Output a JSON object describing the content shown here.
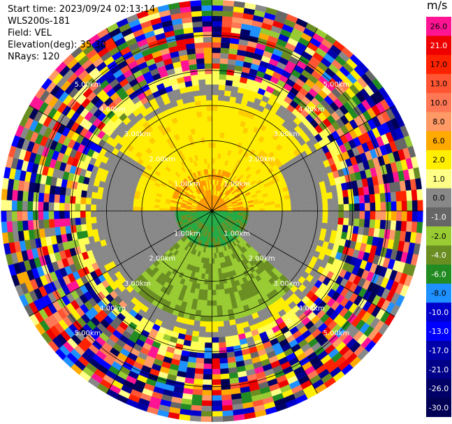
{
  "info": {
    "start_time": "Start time: 2023/09/24 02:13:14",
    "instrument": "WLS200s-181",
    "field": "Field: VEL",
    "elevation": "Elevation(deg): 35.30",
    "nrays": "NRays: 120"
  },
  "chart_data": {
    "type": "heatmap",
    "projection": "polar-ppi",
    "field": "VEL",
    "units": "m/s",
    "nrays": 120,
    "max_range_km": 6.0,
    "range_rings_km": [
      1.0,
      2.0,
      3.0,
      4.0,
      5.0
    ],
    "range_ring_labels": [
      "1.00km",
      "2.00km",
      "3.00km",
      "4.00km",
      "5.00km"
    ],
    "spokes_deg": [
      0,
      30,
      60,
      90,
      120,
      150,
      180,
      210,
      240,
      270,
      300,
      330
    ],
    "colorbar": {
      "ticks": [
        "26.0",
        "21.0",
        "17.0",
        "13.0",
        "10.0",
        "8.0",
        "6.0",
        "2.0",
        "1.0",
        "0.0",
        "-1.0",
        "-2.0",
        "-4.0",
        "-6.0",
        "-8.0",
        "-10.0",
        "-13.0",
        "-17.0",
        "-21.0",
        "-26.0",
        "-30.0"
      ],
      "colors": [
        "#ff1493",
        "#ee0000",
        "#ff2200",
        "#ff5533",
        "#ff7755",
        "#ff9966",
        "#ffaa00",
        "#ffee00",
        "#ffff88",
        "#888888",
        "#666666",
        "#99cc33",
        "#6b8e23",
        "#228b22",
        "#1e90ff",
        "#0000cd",
        "#0000ff",
        "#0000aa",
        "#000088",
        "#000066",
        "#000055"
      ]
    },
    "annotations": [
      {
        "text": "Start time: 2023/09/24 02:13:14"
      },
      {
        "text": "WLS200s-181"
      },
      {
        "text": "Field: VEL"
      },
      {
        "text": "Elevation(deg): 35.30"
      },
      {
        "text": "NRays: 120"
      }
    ]
  }
}
